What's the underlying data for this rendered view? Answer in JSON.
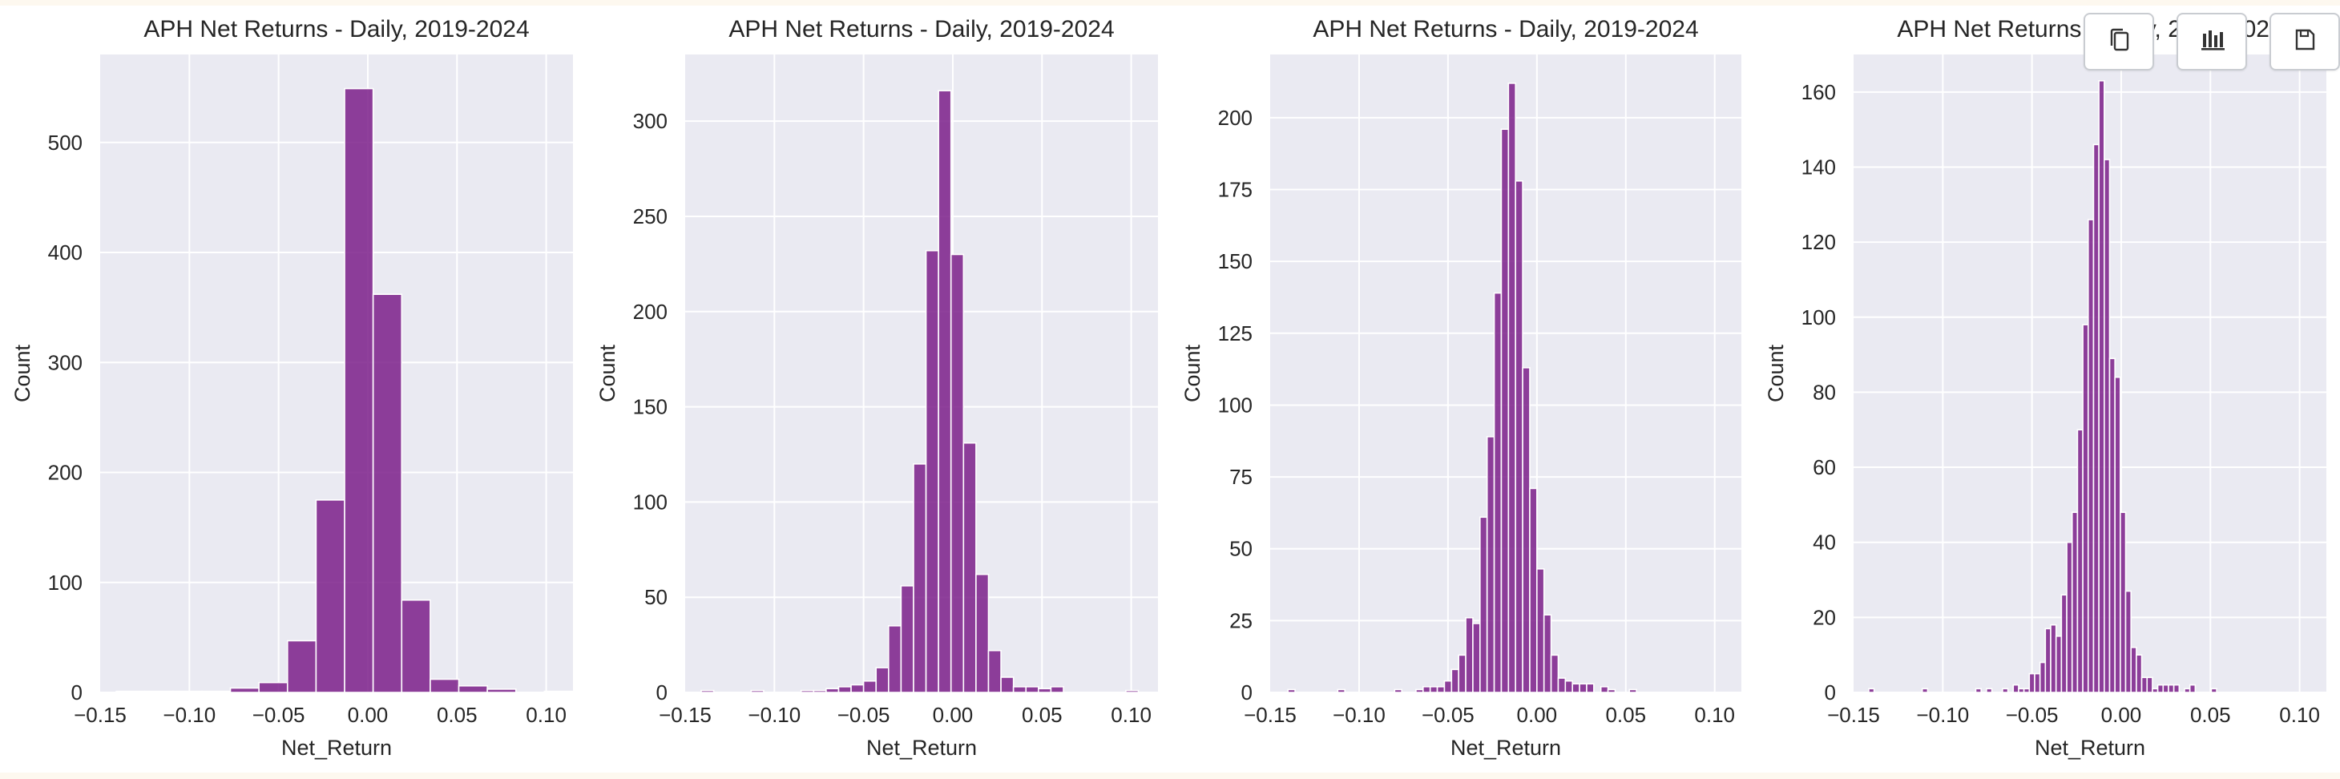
{
  "colors": {
    "bar_fill": "#7b1f8a",
    "plot_bg": "#eaeaf2",
    "grid": "#ffffff",
    "text": "#262626"
  },
  "toolbar": {
    "buttons": [
      {
        "icon": "copy-icon"
      },
      {
        "icon": "bar-chart-icon"
      },
      {
        "icon": "save-icon"
      }
    ]
  },
  "chart_data": [
    {
      "type": "bar",
      "title": "APH Net Returns - Daily, 2019-2024",
      "xlabel": "Net_Return",
      "ylabel": "Count",
      "xlim": [
        -0.15,
        0.115
      ],
      "ylim": [
        0,
        580
      ],
      "xticks": [
        -0.15,
        -0.1,
        -0.05,
        0.0,
        0.05,
        0.1
      ],
      "xtick_labels": [
        "−0.15",
        "−0.10",
        "−0.05",
        "0.00",
        "0.05",
        "0.10"
      ],
      "yticks": [
        0,
        100,
        200,
        300,
        400,
        500
      ],
      "ytick_labels": [
        "0",
        "100",
        "200",
        "300",
        "400",
        "500"
      ],
      "grid": true,
      "bins": [
        {
          "x0": -0.141,
          "x1": -0.125,
          "count": 1
        },
        {
          "x0": -0.125,
          "x1": -0.109,
          "count": 1
        },
        {
          "x0": -0.109,
          "x1": -0.093,
          "count": 1
        },
        {
          "x0": -0.093,
          "x1": -0.077,
          "count": 1
        },
        {
          "x0": -0.077,
          "x1": -0.061,
          "count": 4
        },
        {
          "x0": -0.061,
          "x1": -0.045,
          "count": 9
        },
        {
          "x0": -0.045,
          "x1": -0.029,
          "count": 47
        },
        {
          "x0": -0.029,
          "x1": -0.013,
          "count": 175
        },
        {
          "x0": -0.013,
          "x1": 0.003,
          "count": 549
        },
        {
          "x0": 0.003,
          "x1": 0.019,
          "count": 362
        },
        {
          "x0": 0.019,
          "x1": 0.035,
          "count": 84
        },
        {
          "x0": 0.035,
          "x1": 0.051,
          "count": 12
        },
        {
          "x0": 0.051,
          "x1": 0.067,
          "count": 6
        },
        {
          "x0": 0.067,
          "x1": 0.083,
          "count": 3
        },
        {
          "x0": 0.083,
          "x1": 0.099,
          "count": 0
        },
        {
          "x0": 0.099,
          "x1": 0.115,
          "count": 1
        }
      ]
    },
    {
      "type": "bar",
      "title": "APH Net Returns - Daily, 2019-2024",
      "xlabel": "Net_Return",
      "ylabel": "Count",
      "xlim": [
        -0.15,
        0.115
      ],
      "ylim": [
        0,
        335
      ],
      "xticks": [
        -0.15,
        -0.1,
        -0.05,
        0.0,
        0.05,
        0.1
      ],
      "xtick_labels": [
        "−0.15",
        "−0.10",
        "−0.05",
        "0.00",
        "0.05",
        "0.10"
      ],
      "yticks": [
        0,
        50,
        100,
        150,
        200,
        250,
        300
      ],
      "ytick_labels": [
        "0",
        "50",
        "100",
        "150",
        "200",
        "250",
        "300"
      ],
      "grid": true,
      "bins": [
        {
          "x0": -0.141,
          "x1": -0.134,
          "count": 1
        },
        {
          "x0": -0.134,
          "x1": -0.127,
          "count": 0
        },
        {
          "x0": -0.127,
          "x1": -0.12,
          "count": 0
        },
        {
          "x0": -0.12,
          "x1": -0.113,
          "count": 0
        },
        {
          "x0": -0.113,
          "x1": -0.106,
          "count": 1
        },
        {
          "x0": -0.106,
          "x1": -0.099,
          "count": 0
        },
        {
          "x0": -0.099,
          "x1": -0.092,
          "count": 0
        },
        {
          "x0": -0.092,
          "x1": -0.085,
          "count": 0
        },
        {
          "x0": -0.085,
          "x1": -0.078,
          "count": 1
        },
        {
          "x0": -0.078,
          "x1": -0.071,
          "count": 1
        },
        {
          "x0": -0.071,
          "x1": -0.064,
          "count": 2
        },
        {
          "x0": -0.064,
          "x1": -0.057,
          "count": 3
        },
        {
          "x0": -0.057,
          "x1": -0.05,
          "count": 4
        },
        {
          "x0": -0.05,
          "x1": -0.043,
          "count": 6
        },
        {
          "x0": -0.043,
          "x1": -0.036,
          "count": 13
        },
        {
          "x0": -0.036,
          "x1": -0.029,
          "count": 35
        },
        {
          "x0": -0.029,
          "x1": -0.022,
          "count": 56
        },
        {
          "x0": -0.022,
          "x1": -0.015,
          "count": 120
        },
        {
          "x0": -0.015,
          "x1": -0.008,
          "count": 232
        },
        {
          "x0": -0.008,
          "x1": -0.001,
          "count": 316
        },
        {
          "x0": -0.001,
          "x1": 0.006,
          "count": 230
        },
        {
          "x0": 0.006,
          "x1": 0.013,
          "count": 131
        },
        {
          "x0": 0.013,
          "x1": 0.02,
          "count": 62
        },
        {
          "x0": 0.02,
          "x1": 0.027,
          "count": 22
        },
        {
          "x0": 0.027,
          "x1": 0.034,
          "count": 8
        },
        {
          "x0": 0.034,
          "x1": 0.041,
          "count": 3
        },
        {
          "x0": 0.041,
          "x1": 0.048,
          "count": 3
        },
        {
          "x0": 0.048,
          "x1": 0.055,
          "count": 2
        },
        {
          "x0": 0.055,
          "x1": 0.062,
          "count": 3
        },
        {
          "x0": 0.062,
          "x1": 0.069,
          "count": 0
        },
        {
          "x0": 0.069,
          "x1": 0.076,
          "count": 0
        },
        {
          "x0": 0.076,
          "x1": 0.083,
          "count": 0
        },
        {
          "x0": 0.083,
          "x1": 0.09,
          "count": 0
        },
        {
          "x0": 0.09,
          "x1": 0.097,
          "count": 0
        },
        {
          "x0": 0.097,
          "x1": 0.104,
          "count": 1
        }
      ]
    },
    {
      "type": "bar",
      "title": "APH Net Returns - Daily, 2019-2024",
      "xlabel": "Net_Return",
      "ylabel": "Count",
      "xlim": [
        -0.15,
        0.115
      ],
      "ylim": [
        0,
        222
      ],
      "xticks": [
        -0.15,
        -0.1,
        -0.05,
        0.0,
        0.05,
        0.1
      ],
      "xtick_labels": [
        "−0.15",
        "−0.10",
        "−0.05",
        "0.00",
        "0.05",
        "0.10"
      ],
      "yticks": [
        0,
        25,
        50,
        75,
        100,
        125,
        150,
        175,
        200
      ],
      "ytick_labels": [
        "0",
        "25",
        "50",
        "75",
        "100",
        "125",
        "150",
        "175",
        "200"
      ],
      "grid": true,
      "bins": [
        {
          "x0": -0.14,
          "x1": -0.136,
          "count": 1
        },
        {
          "x0": -0.136,
          "x1": -0.132,
          "count": 0
        },
        {
          "x0": -0.132,
          "x1": -0.128,
          "count": 0
        },
        {
          "x0": -0.128,
          "x1": -0.124,
          "count": 0
        },
        {
          "x0": -0.124,
          "x1": -0.12,
          "count": 0
        },
        {
          "x0": -0.12,
          "x1": -0.116,
          "count": 0
        },
        {
          "x0": -0.116,
          "x1": -0.112,
          "count": 0
        },
        {
          "x0": -0.112,
          "x1": -0.108,
          "count": 1
        },
        {
          "x0": -0.108,
          "x1": -0.104,
          "count": 0
        },
        {
          "x0": -0.104,
          "x1": -0.1,
          "count": 0
        },
        {
          "x0": -0.1,
          "x1": -0.096,
          "count": 0
        },
        {
          "x0": -0.096,
          "x1": -0.092,
          "count": 0
        },
        {
          "x0": -0.092,
          "x1": -0.088,
          "count": 0
        },
        {
          "x0": -0.088,
          "x1": -0.084,
          "count": 0
        },
        {
          "x0": -0.084,
          "x1": -0.08,
          "count": 0
        },
        {
          "x0": -0.08,
          "x1": -0.076,
          "count": 1
        },
        {
          "x0": -0.076,
          "x1": -0.072,
          "count": 0
        },
        {
          "x0": -0.072,
          "x1": -0.068,
          "count": 0
        },
        {
          "x0": -0.068,
          "x1": -0.064,
          "count": 1
        },
        {
          "x0": -0.064,
          "x1": -0.06,
          "count": 2
        },
        {
          "x0": -0.06,
          "x1": -0.056,
          "count": 2
        },
        {
          "x0": -0.056,
          "x1": -0.052,
          "count": 2
        },
        {
          "x0": -0.052,
          "x1": -0.048,
          "count": 4
        },
        {
          "x0": -0.048,
          "x1": -0.044,
          "count": 8
        },
        {
          "x0": -0.044,
          "x1": -0.04,
          "count": 13
        },
        {
          "x0": -0.04,
          "x1": -0.036,
          "count": 26
        },
        {
          "x0": -0.036,
          "x1": -0.032,
          "count": 24
        },
        {
          "x0": -0.032,
          "x1": -0.028,
          "count": 61
        },
        {
          "x0": -0.028,
          "x1": -0.024,
          "count": 89
        },
        {
          "x0": -0.024,
          "x1": -0.02,
          "count": 139
        },
        {
          "x0": -0.02,
          "x1": -0.016,
          "count": 196
        },
        {
          "x0": -0.016,
          "x1": -0.012,
          "count": 212
        },
        {
          "x0": -0.012,
          "x1": -0.008,
          "count": 178
        },
        {
          "x0": -0.008,
          "x1": -0.004,
          "count": 113
        },
        {
          "x0": -0.004,
          "x1": 0.0,
          "count": 71
        },
        {
          "x0": 0.0,
          "x1": 0.004,
          "count": 43
        },
        {
          "x0": 0.004,
          "x1": 0.008,
          "count": 27
        },
        {
          "x0": 0.008,
          "x1": 0.012,
          "count": 13
        },
        {
          "x0": 0.012,
          "x1": 0.016,
          "count": 5
        },
        {
          "x0": 0.016,
          "x1": 0.02,
          "count": 4
        },
        {
          "x0": 0.02,
          "x1": 0.024,
          "count": 3
        },
        {
          "x0": 0.024,
          "x1": 0.028,
          "count": 3
        },
        {
          "x0": 0.028,
          "x1": 0.032,
          "count": 3
        },
        {
          "x0": 0.032,
          "x1": 0.036,
          "count": 0
        },
        {
          "x0": 0.036,
          "x1": 0.04,
          "count": 2
        },
        {
          "x0": 0.04,
          "x1": 0.044,
          "count": 1
        },
        {
          "x0": 0.044,
          "x1": 0.048,
          "count": 0
        },
        {
          "x0": 0.048,
          "x1": 0.052,
          "count": 0
        },
        {
          "x0": 0.052,
          "x1": 0.056,
          "count": 1
        }
      ]
    },
    {
      "type": "bar",
      "title": "APH Net Returns - Daily, 2019-2024",
      "xlabel": "Net_Return",
      "ylabel": "Count",
      "xlim": [
        -0.15,
        0.115
      ],
      "ylim": [
        0,
        170
      ],
      "xticks": [
        -0.15,
        -0.1,
        -0.05,
        0.0,
        0.05,
        0.1
      ],
      "xtick_labels": [
        "−0.15",
        "−0.10",
        "−0.05",
        "0.00",
        "0.05",
        "0.10"
      ],
      "yticks": [
        0,
        20,
        40,
        60,
        80,
        100,
        120,
        140,
        160
      ],
      "ytick_labels": [
        "0",
        "20",
        "40",
        "60",
        "80",
        "100",
        "120",
        "140",
        "160"
      ],
      "grid": true,
      "bins": [
        {
          "x0": -0.1415,
          "x1": -0.1385,
          "count": 1
        },
        {
          "x0": -0.1115,
          "x1": -0.1085,
          "count": 1
        },
        {
          "x0": -0.0815,
          "x1": -0.0785,
          "count": 1
        },
        {
          "x0": -0.0755,
          "x1": -0.0725,
          "count": 1
        },
        {
          "x0": -0.0665,
          "x1": -0.0635,
          "count": 1
        },
        {
          "x0": -0.0605,
          "x1": -0.0575,
          "count": 2
        },
        {
          "x0": -0.0575,
          "x1": -0.0545,
          "count": 1
        },
        {
          "x0": -0.0545,
          "x1": -0.0515,
          "count": 1
        },
        {
          "x0": -0.0515,
          "x1": -0.0485,
          "count": 5
        },
        {
          "x0": -0.0485,
          "x1": -0.0455,
          "count": 5
        },
        {
          "x0": -0.0455,
          "x1": -0.0425,
          "count": 8
        },
        {
          "x0": -0.0425,
          "x1": -0.0395,
          "count": 17
        },
        {
          "x0": -0.0395,
          "x1": -0.0365,
          "count": 18
        },
        {
          "x0": -0.0365,
          "x1": -0.0335,
          "count": 15
        },
        {
          "x0": -0.0335,
          "x1": -0.0305,
          "count": 26
        },
        {
          "x0": -0.0305,
          "x1": -0.0275,
          "count": 40
        },
        {
          "x0": -0.0275,
          "x1": -0.0245,
          "count": 48
        },
        {
          "x0": -0.0245,
          "x1": -0.0215,
          "count": 70
        },
        {
          "x0": -0.0215,
          "x1": -0.0185,
          "count": 98
        },
        {
          "x0": -0.0185,
          "x1": -0.0155,
          "count": 126
        },
        {
          "x0": -0.0155,
          "x1": -0.0125,
          "count": 146
        },
        {
          "x0": -0.0125,
          "x1": -0.0095,
          "count": 163
        },
        {
          "x0": -0.0095,
          "x1": -0.0065,
          "count": 142
        },
        {
          "x0": -0.0065,
          "x1": -0.0035,
          "count": 89
        },
        {
          "x0": -0.0035,
          "x1": -0.0005,
          "count": 84
        },
        {
          "x0": -0.0005,
          "x1": 0.0025,
          "count": 48
        },
        {
          "x0": 0.0025,
          "x1": 0.0055,
          "count": 27
        },
        {
          "x0": 0.0055,
          "x1": 0.0085,
          "count": 12
        },
        {
          "x0": 0.0085,
          "x1": 0.0115,
          "count": 10
        },
        {
          "x0": 0.0115,
          "x1": 0.0145,
          "count": 4
        },
        {
          "x0": 0.0145,
          "x1": 0.0175,
          "count": 4
        },
        {
          "x0": 0.0175,
          "x1": 0.0205,
          "count": 1
        },
        {
          "x0": 0.0205,
          "x1": 0.0235,
          "count": 2
        },
        {
          "x0": 0.0235,
          "x1": 0.0265,
          "count": 2
        },
        {
          "x0": 0.0265,
          "x1": 0.0295,
          "count": 2
        },
        {
          "x0": 0.0295,
          "x1": 0.0325,
          "count": 2
        },
        {
          "x0": 0.0355,
          "x1": 0.0385,
          "count": 1
        },
        {
          "x0": 0.0385,
          "x1": 0.0415,
          "count": 2
        },
        {
          "x0": 0.0505,
          "x1": 0.0535,
          "count": 1
        }
      ]
    }
  ]
}
